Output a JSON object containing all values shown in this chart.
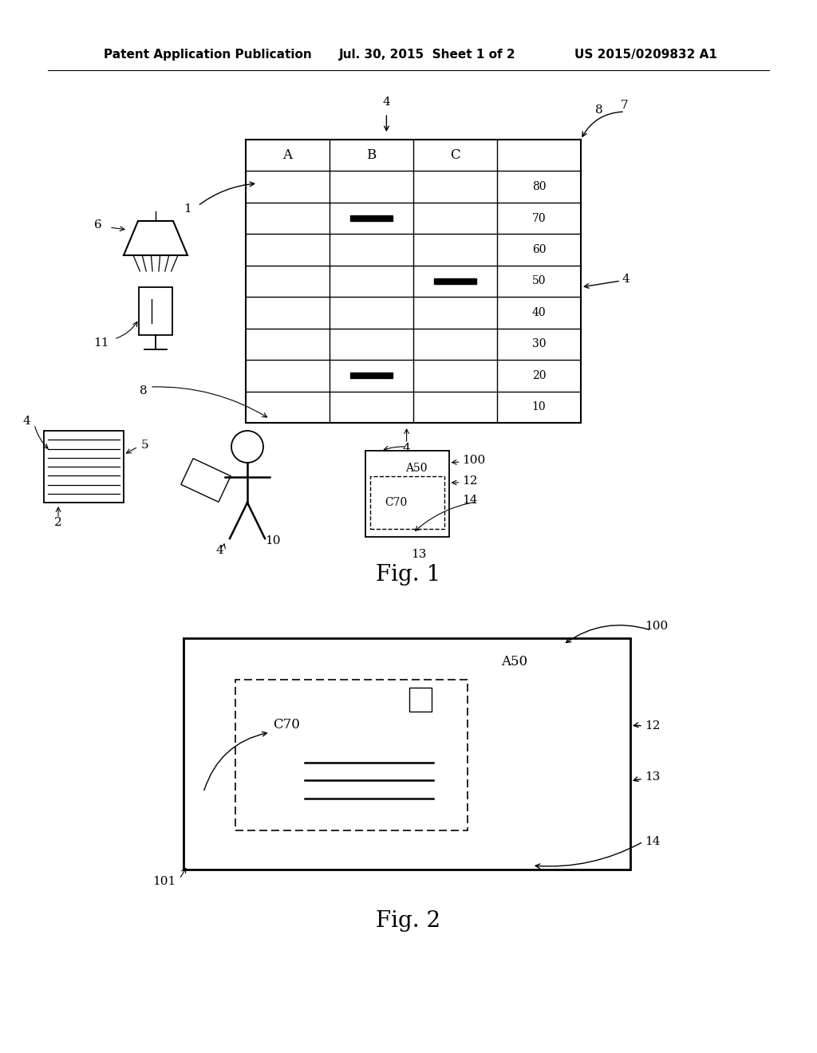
{
  "bg_color": "#ffffff",
  "header_line1": "Patent Application Publication",
  "header_line2": "Jul. 30, 2015  Sheet 1 of 2",
  "header_line3": "US 2015/0209832 A1",
  "fig1_label": "Fig. 1",
  "fig2_label": "Fig. 2"
}
